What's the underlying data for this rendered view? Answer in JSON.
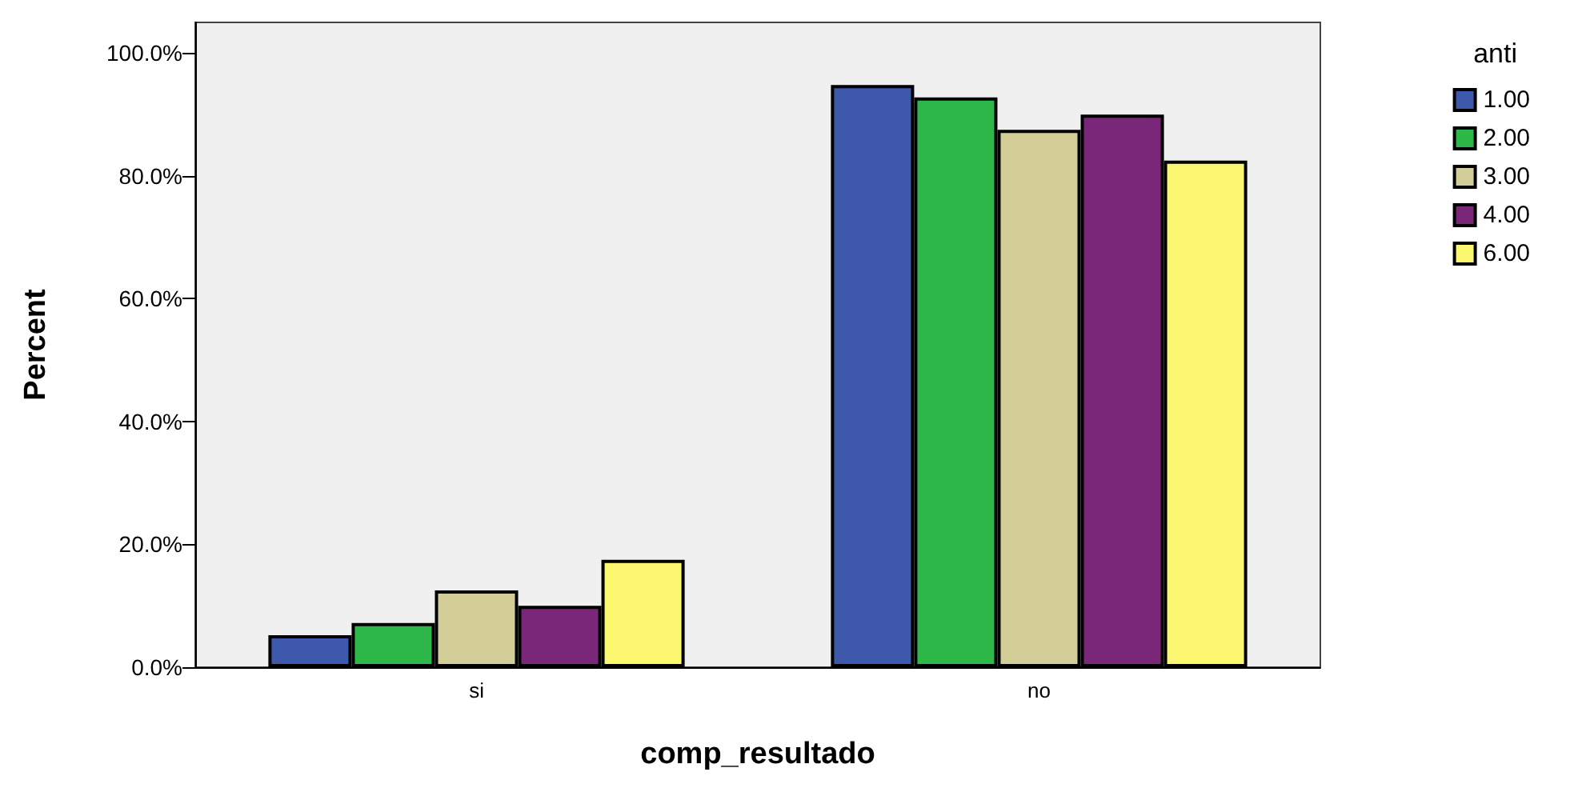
{
  "chart_data": {
    "type": "bar",
    "xlabel": "comp_resultado",
    "ylabel": "Percent",
    "legend_title": "anti",
    "categories": [
      "si",
      "no"
    ],
    "series": [
      {
        "name": "1.00",
        "color": "#3e58ac",
        "values": [
          5.2,
          94.8
        ]
      },
      {
        "name": "2.00",
        "color": "#2fb84a",
        "values": [
          7.2,
          92.8
        ]
      },
      {
        "name": "3.00",
        "color": "#d3ce98",
        "values": [
          12.5,
          87.5
        ]
      },
      {
        "name": "4.00",
        "color": "#7b2779",
        "values": [
          10.0,
          90.0
        ]
      },
      {
        "name": "6.00",
        "color": "#fbf770",
        "values": [
          17.5,
          82.5
        ]
      }
    ],
    "ylim": [
      0,
      105
    ],
    "yticks": [
      {
        "value": 0,
        "label": "0.0%"
      },
      {
        "value": 20,
        "label": "20.0%"
      },
      {
        "value": 40,
        "label": "40.0%"
      },
      {
        "value": 60,
        "label": "60.0%"
      },
      {
        "value": 80,
        "label": "80.0%"
      },
      {
        "value": 100,
        "label": "100.0%"
      }
    ],
    "grid": false,
    "legend": "top right"
  }
}
